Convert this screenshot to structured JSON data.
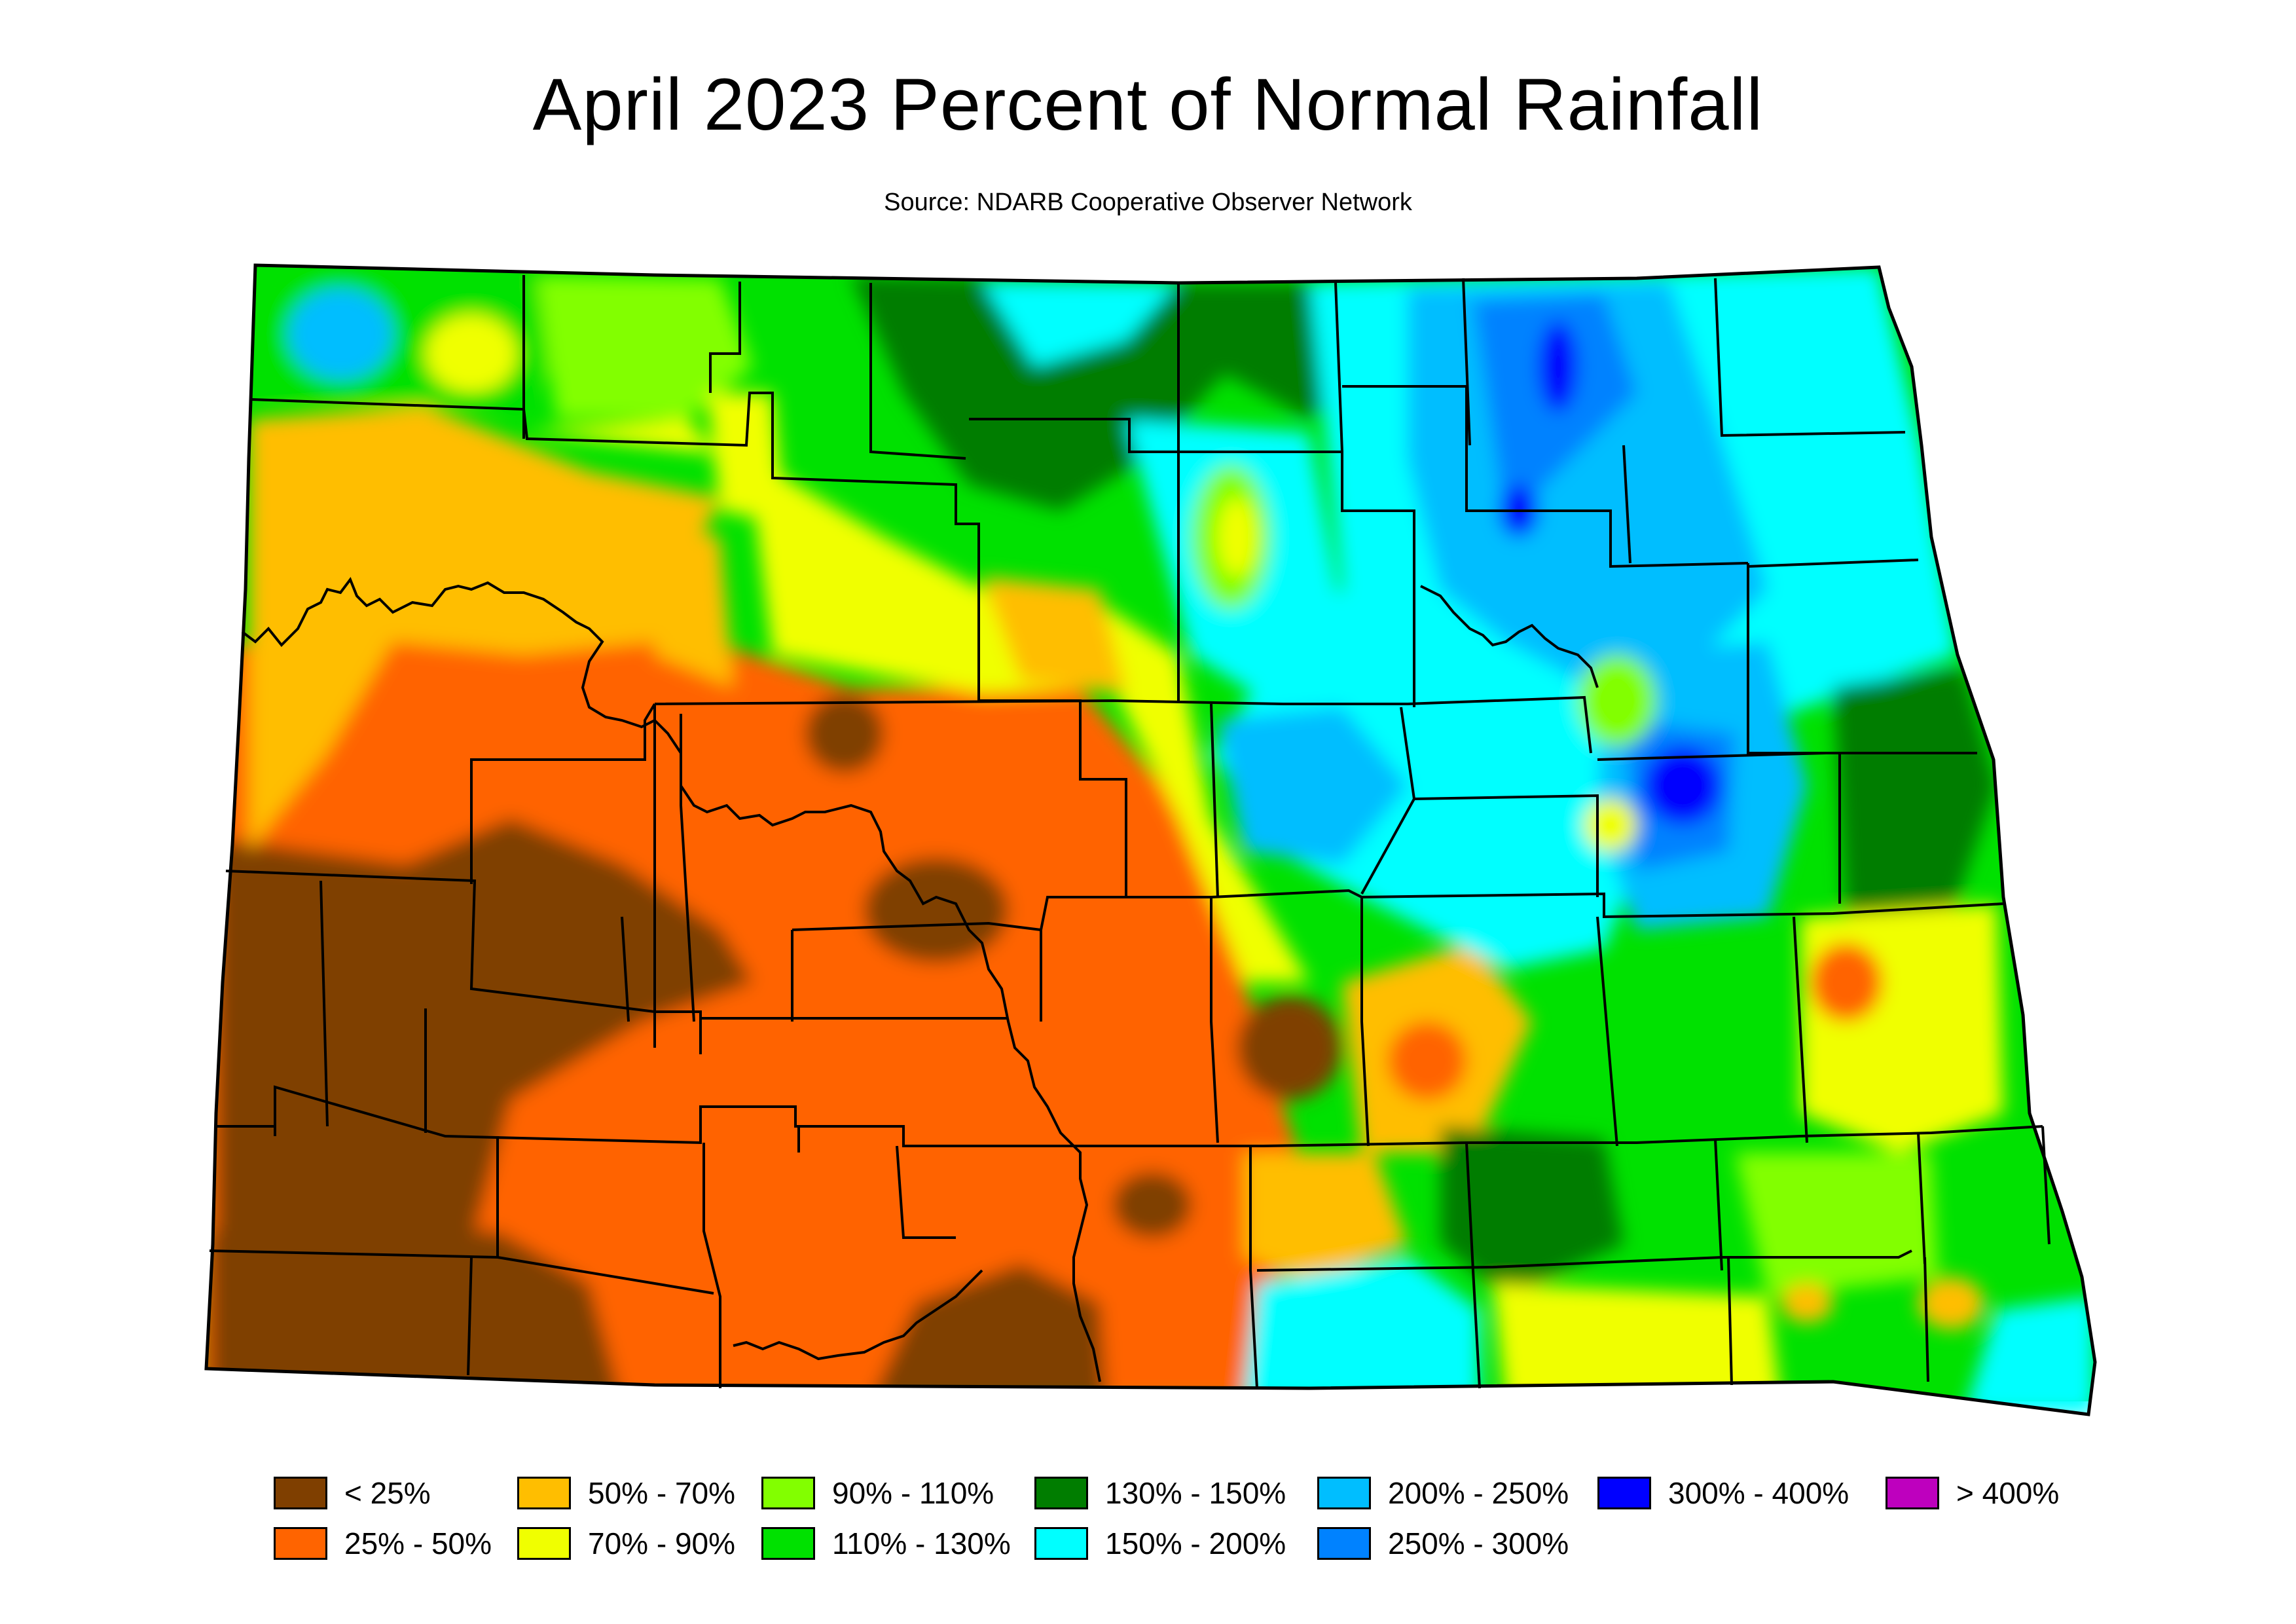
{
  "title": "April 2023 Percent of Normal Rainfall",
  "subtitle": "Source: NDARB Cooperative Observer Network",
  "legend": [
    {
      "label": "< 25%",
      "color": "#7f3f00"
    },
    {
      "label": "25% - 50%",
      "color": "#ff6400"
    },
    {
      "label": "50% - 70%",
      "color": "#ffbe00"
    },
    {
      "label": "70% - 90%",
      "color": "#f0ff00"
    },
    {
      "label": "90% - 110%",
      "color": "#82ff00"
    },
    {
      "label": "110% - 130%",
      "color": "#00e100"
    },
    {
      "label": "130% - 150%",
      "color": "#007d00"
    },
    {
      "label": "150% - 200%",
      "color": "#00ffff"
    },
    {
      "label": "200% - 250%",
      "color": "#00beff"
    },
    {
      "label": "250% - 300%",
      "color": "#0082ff"
    },
    {
      "label": "300% - 400%",
      "color": "#0000ff"
    },
    {
      "label": "> 400%",
      "color": "#be00be"
    }
  ]
}
